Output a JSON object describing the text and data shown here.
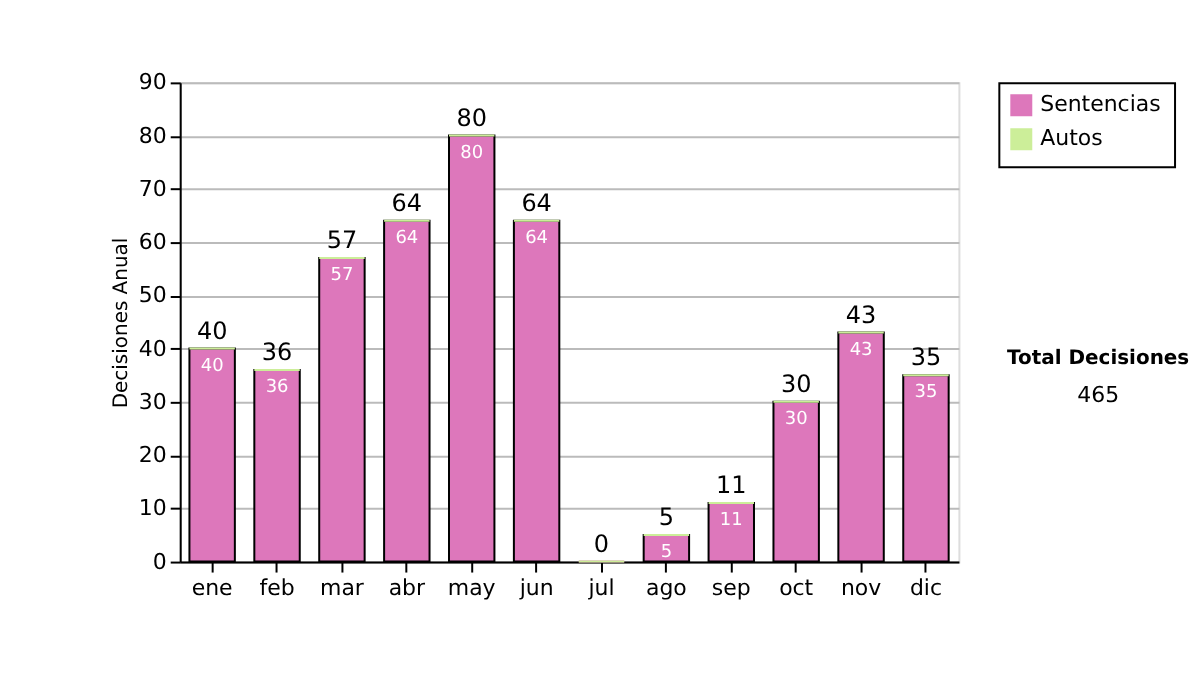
{
  "chart_data": {
    "type": "bar",
    "stacked": true,
    "ylabel": "Decisiones Anual",
    "categories": [
      "ene",
      "feb",
      "mar",
      "abr",
      "may",
      "jun",
      "jul",
      "ago",
      "sep",
      "oct",
      "nov",
      "dic"
    ],
    "series": [
      {
        "name": "Sentencias",
        "color": "#dd77bb",
        "values": [
          40,
          36,
          57,
          64,
          80,
          64,
          0,
          5,
          11,
          30,
          43,
          35
        ],
        "value_labels": [
          "40",
          "36",
          "57",
          "64",
          "80",
          "64",
          null,
          "5",
          "11",
          "30",
          "43",
          "35"
        ]
      },
      {
        "name": "Autos",
        "color": "#ccee99",
        "values": [
          0,
          0,
          0,
          0,
          0,
          0,
          0,
          0,
          0,
          0,
          0,
          0
        ]
      }
    ],
    "totals": [
      "40",
      "36",
      "57",
      "64",
      "80",
      "64",
      "0",
      "5",
      "11",
      "30",
      "43",
      "35"
    ],
    "ylim": [
      0,
      90
    ],
    "yticks": [
      0,
      10,
      20,
      30,
      40,
      50,
      60,
      70,
      80,
      90
    ],
    "grid": "y",
    "legend": "right",
    "annotations": [
      "Total Decisiones",
      "465"
    ]
  }
}
